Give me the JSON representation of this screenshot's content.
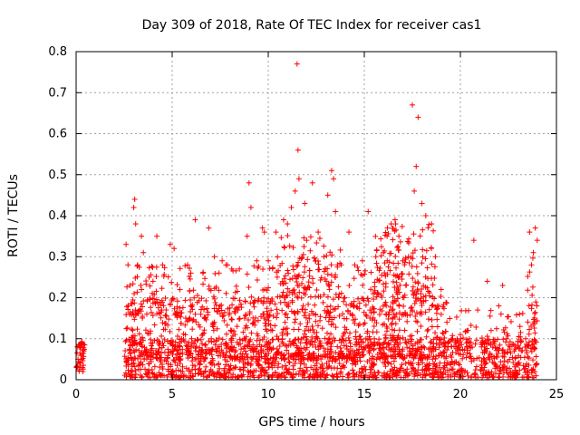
{
  "chart_data": {
    "type": "scatter",
    "title": "Day 309 of 2018, Rate Of TEC Index for receiver cas1",
    "xlabel": "GPS time / hours",
    "ylabel": "ROTI / TECUs",
    "xlim": [
      0,
      25
    ],
    "ylim": [
      0,
      0.8
    ],
    "xticks": [
      0,
      5,
      10,
      15,
      20,
      25
    ],
    "xtick_labels": [
      "0",
      "5",
      "10",
      "15",
      "20",
      "25"
    ],
    "yticks": [
      0,
      0.1,
      0.2,
      0.3,
      0.4,
      0.5,
      0.6,
      0.7,
      0.8
    ],
    "ytick_labels": [
      "0",
      "0.1",
      "0.2",
      "0.3",
      "0.4",
      "0.5",
      "0.6",
      "0.7",
      "0.8"
    ],
    "grid": true,
    "marker": "+",
    "marker_color": "#ff0000",
    "series": [
      {
        "name": "ROTI",
        "points": [
          [
            0.05,
            0.03
          ],
          [
            0.1,
            0.05
          ],
          [
            0.15,
            0.08
          ],
          [
            0.2,
            0.04
          ],
          [
            0.25,
            0.06
          ],
          [
            0.3,
            0.09
          ],
          [
            0.35,
            0.02
          ],
          [
            0.4,
            0.07
          ],
          [
            2.6,
            0.33
          ],
          [
            2.7,
            0.28
          ],
          [
            2.8,
            0.23
          ],
          [
            3.0,
            0.42
          ],
          [
            3.05,
            0.44
          ],
          [
            3.1,
            0.38
          ],
          [
            3.2,
            0.28
          ],
          [
            3.4,
            0.35
          ],
          [
            3.5,
            0.31
          ],
          [
            3.8,
            0.25
          ],
          [
            4.0,
            0.24
          ],
          [
            4.2,
            0.35
          ],
          [
            4.5,
            0.28
          ],
          [
            4.9,
            0.33
          ],
          [
            5.1,
            0.32
          ],
          [
            5.4,
            0.22
          ],
          [
            5.8,
            0.28
          ],
          [
            6.2,
            0.39
          ],
          [
            6.6,
            0.26
          ],
          [
            6.9,
            0.37
          ],
          [
            7.2,
            0.3
          ],
          [
            7.6,
            0.29
          ],
          [
            8.1,
            0.27
          ],
          [
            8.5,
            0.27
          ],
          [
            8.9,
            0.35
          ],
          [
            9.0,
            0.48
          ],
          [
            9.1,
            0.42
          ],
          [
            9.4,
            0.29
          ],
          [
            9.7,
            0.37
          ],
          [
            9.8,
            0.36
          ],
          [
            10.0,
            0.29
          ],
          [
            10.4,
            0.36
          ],
          [
            10.8,
            0.39
          ],
          [
            11.0,
            0.38
          ],
          [
            11.2,
            0.42
          ],
          [
            11.4,
            0.46
          ],
          [
            11.5,
            0.77
          ],
          [
            11.55,
            0.56
          ],
          [
            11.6,
            0.49
          ],
          [
            11.9,
            0.43
          ],
          [
            12.0,
            0.34
          ],
          [
            12.3,
            0.48
          ],
          [
            12.6,
            0.36
          ],
          [
            12.9,
            0.3
          ],
          [
            13.1,
            0.45
          ],
          [
            13.3,
            0.51
          ],
          [
            13.4,
            0.49
          ],
          [
            13.5,
            0.41
          ],
          [
            13.8,
            0.28
          ],
          [
            14.2,
            0.36
          ],
          [
            14.5,
            0.28
          ],
          [
            14.9,
            0.29
          ],
          [
            15.2,
            0.41
          ],
          [
            15.6,
            0.3
          ],
          [
            16.0,
            0.31
          ],
          [
            16.2,
            0.37
          ],
          [
            16.4,
            0.38
          ],
          [
            16.6,
            0.39
          ],
          [
            16.8,
            0.35
          ],
          [
            17.0,
            0.29
          ],
          [
            17.3,
            0.3
          ],
          [
            17.5,
            0.67
          ],
          [
            17.6,
            0.46
          ],
          [
            17.7,
            0.52
          ],
          [
            17.8,
            0.64
          ],
          [
            18.0,
            0.43
          ],
          [
            18.2,
            0.4
          ],
          [
            18.5,
            0.38
          ],
          [
            18.7,
            0.3
          ],
          [
            19.0,
            0.22
          ],
          [
            19.3,
            0.14
          ],
          [
            19.6,
            0.1
          ],
          [
            20.0,
            0.11
          ],
          [
            20.4,
            0.12
          ],
          [
            20.7,
            0.34
          ],
          [
            20.9,
            0.17
          ],
          [
            21.1,
            0.08
          ],
          [
            21.4,
            0.24
          ],
          [
            21.6,
            0.12
          ],
          [
            22.0,
            0.18
          ],
          [
            22.2,
            0.23
          ],
          [
            22.4,
            0.1
          ],
          [
            22.8,
            0.07
          ],
          [
            23.1,
            0.13
          ],
          [
            23.4,
            0.1
          ],
          [
            23.6,
            0.36
          ],
          [
            23.7,
            0.28
          ],
          [
            23.8,
            0.31
          ],
          [
            23.9,
            0.37
          ],
          [
            24.0,
            0.34
          ]
        ],
        "bands": [
          {
            "x": [
              0.0,
              0.45
            ],
            "y": [
              0.02,
              0.1
            ],
            "count": 35
          },
          {
            "x": [
              2.5,
              24.0
            ],
            "y": [
              0.005,
              0.1
            ],
            "count": 1300
          },
          {
            "x": [
              2.6,
              19.3
            ],
            "y": [
              0.05,
              0.2
            ],
            "count": 800
          },
          {
            "x": [
              2.6,
              19.0
            ],
            "y": [
              0.15,
              0.28
            ],
            "count": 280
          },
          {
            "x": [
              10.3,
              13.8
            ],
            "y": [
              0.2,
              0.36
            ],
            "count": 110
          },
          {
            "x": [
              15.5,
              18.6
            ],
            "y": [
              0.2,
              0.38
            ],
            "count": 110
          },
          {
            "x": [
              19.2,
              24.0
            ],
            "y": [
              0.07,
              0.17
            ],
            "count": 70
          },
          {
            "x": [
              23.5,
              24.0
            ],
            "y": [
              0.1,
              0.3
            ],
            "count": 20
          }
        ]
      }
    ]
  }
}
